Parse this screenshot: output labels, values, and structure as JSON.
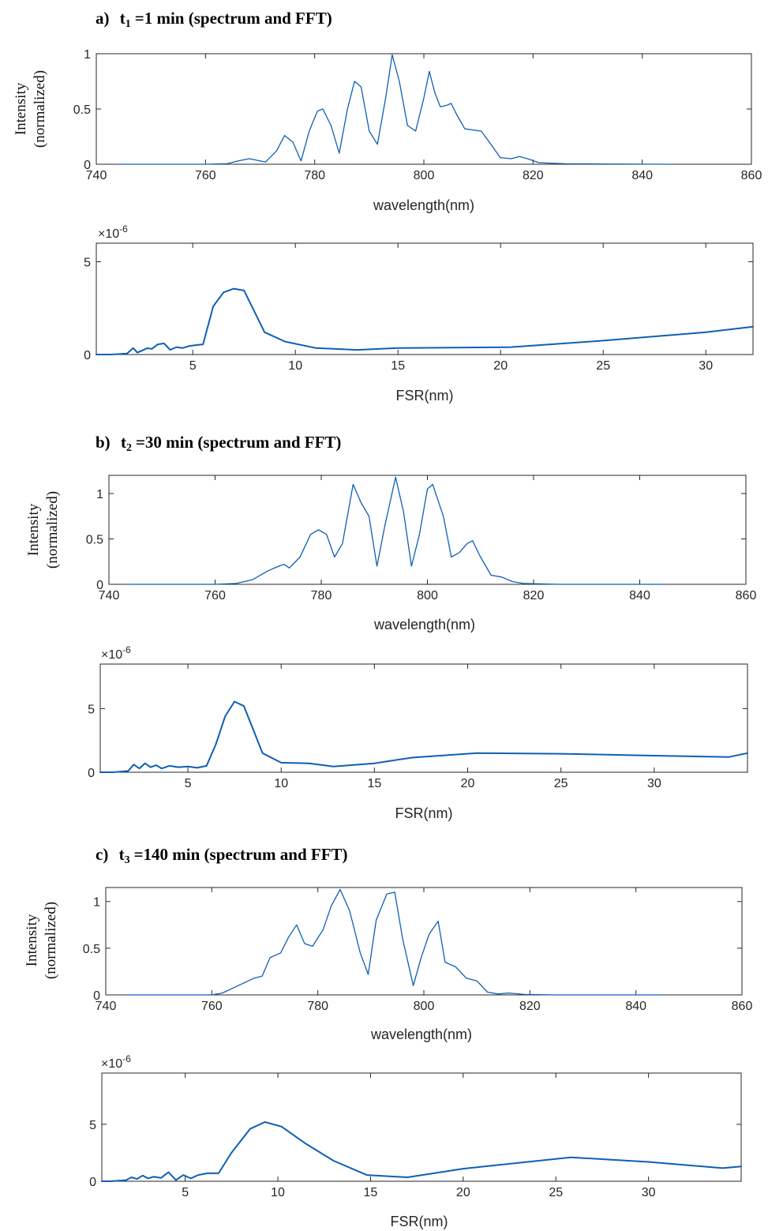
{
  "panels": [
    {
      "label": "a)",
      "t_symbol": "t",
      "t_index": "1",
      "t_value": "=1 min (spectrum and FFT)",
      "spectrum": {
        "ylabel_line1": "Intensity",
        "ylabel_line2": "(normalized)",
        "xlabel": "wavelength(nm)",
        "xlim": [
          740,
          860
        ],
        "ylim": [
          0,
          1
        ],
        "xticks": [
          740,
          760,
          780,
          800,
          820,
          840,
          860
        ],
        "yticks": [
          0,
          0.5,
          1
        ]
      },
      "fft": {
        "multiplier": "×10",
        "exponent": "-6",
        "xlabel": "FSR(nm)",
        "xlim": [
          0.3,
          32.3
        ],
        "ylim": [
          0,
          6
        ],
        "xticks": [
          5,
          10,
          15,
          20,
          25,
          30
        ],
        "yticks": [
          0,
          5
        ]
      }
    },
    {
      "label": "b)",
      "t_symbol": "t",
      "t_index": "2",
      "t_value": "=30 min (spectrum and FFT)",
      "spectrum": {
        "ylabel_line1": "Intensity",
        "ylabel_line2": "(normalized)",
        "xlabel": "wavelength(nm)",
        "xlim": [
          740,
          860
        ],
        "ylim": [
          0,
          1.2
        ],
        "xticks": [
          740,
          760,
          780,
          800,
          820,
          840,
          860
        ],
        "yticks": [
          0,
          0.5,
          1
        ]
      },
      "fft": {
        "multiplier": "×10",
        "exponent": "-6",
        "xlabel": "FSR(nm)",
        "xlim": [
          0.3,
          35
        ],
        "ylim": [
          0,
          8.5
        ],
        "xticks": [
          5,
          10,
          15,
          20,
          25,
          30
        ],
        "yticks": [
          0,
          5
        ]
      }
    },
    {
      "label": "c)",
      "t_symbol": "t",
      "t_index": "3",
      "t_value": "=140 min (spectrum and FFT)",
      "spectrum": {
        "ylabel_line1": "Intensity",
        "ylabel_line2": "(normalized)",
        "xlabel": "wavelength(nm)",
        "xlim": [
          740,
          860
        ],
        "ylim": [
          0,
          1.15
        ],
        "xticks": [
          740,
          760,
          780,
          800,
          820,
          840,
          860
        ],
        "yticks": [
          0,
          0.5,
          1
        ]
      },
      "fft": {
        "multiplier": "×10",
        "exponent": "-6",
        "xlabel": "FSR(nm)",
        "xlim": [
          0.5,
          35
        ],
        "ylim": [
          0,
          9.5
        ],
        "xticks": [
          5,
          10,
          15,
          20,
          25,
          30
        ],
        "yticks": [
          0,
          5
        ]
      }
    }
  ],
  "line_color": "#0e5fb4",
  "chart_data": [
    {
      "type": "line",
      "panel": "a) spectrum",
      "xlabel": "wavelength(nm)",
      "ylabel": "Intensity (normalized)",
      "xlim": [
        740,
        860
      ],
      "ylim": [
        0,
        1
      ],
      "x": [
        744,
        760,
        764,
        766,
        768,
        770,
        771,
        773,
        774.5,
        776,
        777.5,
        779,
        780.5,
        781.5,
        783,
        784.5,
        786,
        787.3,
        788.5,
        790,
        791.5,
        793,
        794.2,
        795.5,
        797,
        798.5,
        800,
        801,
        802,
        803,
        804,
        805,
        806,
        807.5,
        809,
        810.5,
        812,
        814,
        816,
        817.5,
        819,
        821,
        823,
        826,
        845
      ],
      "values": [
        0,
        0,
        0.005,
        0.03,
        0.05,
        0.03,
        0.02,
        0.12,
        0.26,
        0.2,
        0.03,
        0.3,
        0.48,
        0.5,
        0.35,
        0.1,
        0.5,
        0.75,
        0.7,
        0.3,
        0.18,
        0.6,
        0.99,
        0.75,
        0.35,
        0.3,
        0.6,
        0.84,
        0.65,
        0.52,
        0.53,
        0.55,
        0.45,
        0.32,
        0.31,
        0.3,
        0.2,
        0.06,
        0.05,
        0.07,
        0.05,
        0.015,
        0.01,
        0.004,
        0
      ]
    },
    {
      "type": "line",
      "panel": "a) FFT",
      "xlabel": "FSR(nm)",
      "xlim": [
        0.3,
        32.3
      ],
      "ylim": [
        0,
        6
      ],
      "x": [
        0.3,
        1,
        1.8,
        2.1,
        2.3,
        2.5,
        2.8,
        3,
        3.3,
        3.6,
        3.9,
        4.2,
        4.5,
        4.8,
        5.1,
        5.5,
        6,
        6.5,
        7,
        7.5,
        8.5,
        9.5,
        11,
        13,
        15,
        20.5,
        25,
        30,
        32.3
      ],
      "values": [
        0,
        0,
        0.05,
        0.35,
        0.1,
        0.2,
        0.35,
        0.3,
        0.55,
        0.6,
        0.25,
        0.4,
        0.35,
        0.45,
        0.5,
        0.55,
        2.6,
        3.35,
        3.55,
        3.45,
        1.2,
        0.7,
        0.35,
        0.25,
        0.35,
        0.4,
        0.75,
        1.2,
        1.5
      ]
    },
    {
      "type": "line",
      "panel": "b) spectrum",
      "xlabel": "wavelength(nm)",
      "ylabel": "Intensity (normalized)",
      "xlim": [
        740,
        860
      ],
      "ylim": [
        0,
        1.2
      ],
      "x": [
        744,
        760,
        764,
        767,
        770,
        772,
        773,
        774,
        776,
        778,
        779.5,
        781,
        782.5,
        784,
        786,
        787.5,
        789,
        790.5,
        792,
        794,
        795.5,
        797,
        798.5,
        800,
        801,
        803,
        804.5,
        806,
        807.5,
        808.5,
        810,
        812,
        814,
        816,
        818,
        825,
        845
      ],
      "values": [
        0,
        0,
        0.01,
        0.05,
        0.15,
        0.2,
        0.22,
        0.18,
        0.3,
        0.55,
        0.6,
        0.55,
        0.3,
        0.45,
        1.1,
        0.9,
        0.75,
        0.2,
        0.65,
        1.18,
        0.8,
        0.2,
        0.55,
        1.05,
        1.1,
        0.75,
        0.3,
        0.35,
        0.45,
        0.48,
        0.3,
        0.1,
        0.08,
        0.03,
        0.01,
        0,
        0
      ]
    },
    {
      "type": "line",
      "panel": "b) FFT",
      "xlabel": "FSR(nm)",
      "xlim": [
        0.3,
        35
      ],
      "ylim": [
        0,
        8.5
      ],
      "x": [
        0.3,
        1,
        1.8,
        2.1,
        2.4,
        2.7,
        3,
        3.3,
        3.6,
        4,
        4.5,
        5,
        5.5,
        6,
        6.5,
        7,
        7.5,
        8,
        9,
        10,
        11.5,
        12.8,
        15,
        17,
        20.5,
        25,
        30,
        34,
        35
      ],
      "values": [
        0,
        0,
        0.1,
        0.6,
        0.3,
        0.7,
        0.4,
        0.55,
        0.3,
        0.5,
        0.4,
        0.45,
        0.35,
        0.5,
        2.2,
        4.4,
        5.55,
        5.2,
        1.5,
        0.75,
        0.7,
        0.45,
        0.7,
        1.15,
        1.5,
        1.45,
        1.3,
        1.2,
        1.5
      ]
    },
    {
      "type": "line",
      "panel": "c) spectrum",
      "xlabel": "wavelength(nm)",
      "ylabel": "Intensity (normalized)",
      "xlim": [
        740,
        860
      ],
      "ylim": [
        0,
        1.15
      ],
      "x": [
        744,
        760,
        762,
        765,
        768,
        769.5,
        771,
        773,
        774.5,
        776,
        777.5,
        779,
        781,
        782.5,
        784.2,
        786,
        788,
        789.5,
        791,
        793,
        794.5,
        796,
        798,
        799.5,
        801,
        802.7,
        804,
        806,
        808,
        810,
        812,
        814,
        816,
        819,
        825,
        845
      ],
      "values": [
        0,
        0,
        0.02,
        0.1,
        0.18,
        0.2,
        0.4,
        0.45,
        0.62,
        0.75,
        0.55,
        0.52,
        0.7,
        0.95,
        1.13,
        0.9,
        0.45,
        0.22,
        0.8,
        1.08,
        1.1,
        0.6,
        0.1,
        0.4,
        0.65,
        0.79,
        0.35,
        0.3,
        0.18,
        0.15,
        0.03,
        0.01,
        0.02,
        0.005,
        0,
        0
      ]
    },
    {
      "type": "line",
      "panel": "c) FFT",
      "xlabel": "FSR(nm)",
      "xlim": [
        0.5,
        35
      ],
      "ylim": [
        0,
        9.5
      ],
      "x": [
        0.5,
        1,
        1.8,
        2.1,
        2.4,
        2.7,
        3,
        3.3,
        3.7,
        4.1,
        4.5,
        4.9,
        5.3,
        5.7,
        6.2,
        6.8,
        7.5,
        8.5,
        9.3,
        10.2,
        11.5,
        13,
        14.8,
        17,
        20,
        25.8,
        30,
        34,
        35
      ],
      "values": [
        0,
        0,
        0.1,
        0.35,
        0.2,
        0.5,
        0.25,
        0.4,
        0.3,
        0.8,
        0.1,
        0.55,
        0.25,
        0.55,
        0.7,
        0.7,
        2.5,
        4.6,
        5.2,
        4.8,
        3.3,
        1.8,
        0.55,
        0.35,
        1.1,
        2.1,
        1.7,
        1.15,
        1.3
      ]
    }
  ]
}
